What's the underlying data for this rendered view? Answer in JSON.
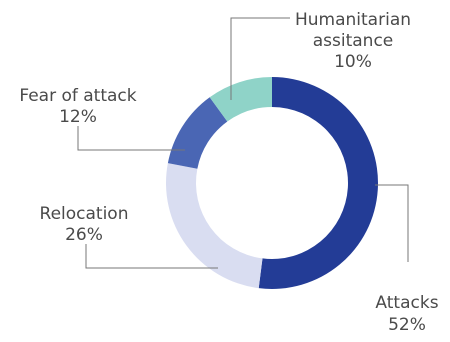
{
  "chart_data": {
    "type": "pie",
    "donut": true,
    "legend": "none",
    "slices": [
      {
        "name": "Attacks",
        "value_label": "52%",
        "value": 52,
        "color": "#233c96"
      },
      {
        "name": "Relocation",
        "value_label": "26%",
        "value": 26,
        "color": "#d9ddf1"
      },
      {
        "name": "Fear of attack",
        "value_label": "12%",
        "value": 12,
        "color": "#4a66b4"
      },
      {
        "name": "Humanitarian assitance",
        "name_lines": [
          "Humanitarian",
          "assitance"
        ],
        "value_label": "10%",
        "value": 10,
        "color": "#8fd3c8"
      }
    ]
  }
}
